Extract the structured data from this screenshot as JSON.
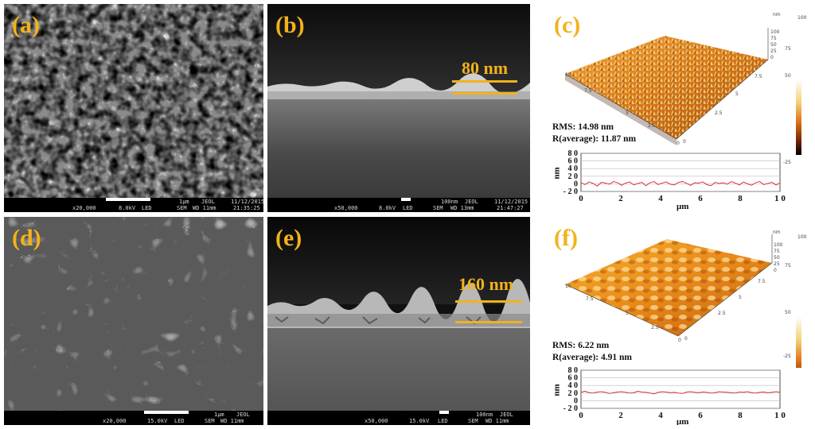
{
  "panels": [
    {
      "letter": "(a)",
      "infobar": {
        "mag": "x20,000",
        "kv": "8.0kV",
        "det": "LED",
        "mode": "SEM",
        "wd": "WD 11mm",
        "scale": "1μm",
        "brand": "JEOL",
        "date": "11/12/2015",
        "time": "21:35:25"
      }
    },
    {
      "letter": "(b)",
      "thickness": "80 nm",
      "infobar": {
        "mag": "x50,000",
        "kv": "8.0kV",
        "det": "LED",
        "mode": "SEM",
        "wd": "WD 13mm",
        "scale": "100nm",
        "brand": "JEOL",
        "date": "11/12/2015",
        "time": "21:47:27"
      }
    },
    {
      "letter": "(c)",
      "rms": "RMS: 14.98 nm",
      "ravg": "R(average): 11.87 nm",
      "profile_values": [
        3,
        -2,
        5,
        1,
        -6,
        4,
        2,
        -1,
        6,
        3,
        -4,
        2,
        5,
        -3,
        1,
        4,
        -5,
        3,
        6,
        -2,
        2,
        5,
        -1,
        -3,
        4,
        6,
        1,
        -4,
        3,
        2,
        5,
        -2,
        -5,
        4,
        1,
        3,
        -1,
        6,
        2,
        -3,
        5,
        0,
        -4,
        3,
        6,
        -2,
        1,
        4,
        -3,
        2
      ]
    },
    {
      "letter": "(d)",
      "infobar": {
        "mag": "x20,000",
        "kv": "15.0kV",
        "det": "LED",
        "mode": "SEM",
        "wd": "WD 11mm",
        "scale": "1μm",
        "brand": "JEOL"
      }
    },
    {
      "letter": "(e)",
      "thickness": "160 nm",
      "infobar": {
        "mag": "x50,000",
        "kv": "15.0kV",
        "det": "LED",
        "mode": "SEM",
        "wd": "WD 11mm",
        "scale": "100nm",
        "brand": "JEOL"
      }
    },
    {
      "letter": "(f)",
      "rms": "RMS: 6.22 nm",
      "ravg": "R(average): 4.91 nm",
      "profile_values": [
        22,
        25,
        21,
        20,
        23,
        24,
        22,
        19,
        21,
        23,
        24,
        22,
        20,
        21,
        25,
        23,
        22,
        20,
        18,
        22,
        24,
        23,
        21,
        22,
        20,
        19,
        23,
        24,
        22,
        21,
        23,
        22,
        20,
        21,
        24,
        23,
        22,
        21,
        20,
        23,
        22,
        24,
        21,
        20,
        22,
        23,
        21,
        22,
        24,
        22
      ]
    }
  ],
  "afm_axis": {
    "unit_y": "nm",
    "unit_x": "μm",
    "y_ticks": [
      "8 0",
      "6 0",
      "4 0",
      "2 0",
      "0",
      "- 2 0"
    ],
    "x_ticks": [
      "0",
      "2",
      "4",
      "6",
      "8",
      "1 0"
    ],
    "surface_ticks": [
      "0",
      "2.5",
      "5",
      "7.5",
      "10"
    ],
    "colorbar_top": "100",
    "colorbar_mid": "75",
    "colorbar_50": "50",
    "colorbar_neg": "-25",
    "z_ticks": [
      "100",
      "75",
      "50",
      "25",
      "0"
    ],
    "z_unit": "nm"
  },
  "colors": {
    "accent": "#f2b21c",
    "profile": "#e0201c",
    "sem_dark": "#222222"
  }
}
